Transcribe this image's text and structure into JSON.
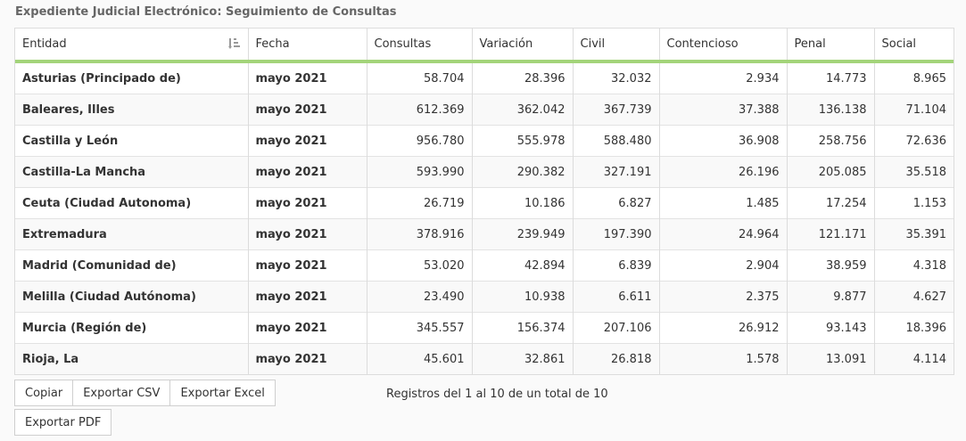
{
  "title": "Expediente Judicial Electrónico: Seguimiento de Consultas",
  "table": {
    "columns": [
      "Entidad",
      "Fecha",
      "Consultas",
      "Variación",
      "Civil",
      "Contencioso",
      "Penal",
      "Social"
    ],
    "rows": [
      [
        "Asturias (Principado de)",
        "mayo 2021",
        "58.704",
        "28.396",
        "32.032",
        "2.934",
        "14.773",
        "8.965"
      ],
      [
        "Baleares, Illes",
        "mayo 2021",
        "612.369",
        "362.042",
        "367.739",
        "37.388",
        "136.138",
        "71.104"
      ],
      [
        "Castilla y León",
        "mayo 2021",
        "956.780",
        "555.978",
        "588.480",
        "36.908",
        "258.756",
        "72.636"
      ],
      [
        "Castilla-La Mancha",
        "mayo 2021",
        "593.990",
        "290.382",
        "327.191",
        "26.196",
        "205.085",
        "35.518"
      ],
      [
        "Ceuta (Ciudad Autonoma)",
        "mayo 2021",
        "26.719",
        "10.186",
        "6.827",
        "1.485",
        "17.254",
        "1.153"
      ],
      [
        "Extremadura",
        "mayo 2021",
        "378.916",
        "239.949",
        "197.390",
        "24.964",
        "121.171",
        "35.391"
      ],
      [
        "Madrid (Comunidad de)",
        "mayo 2021",
        "53.020",
        "42.894",
        "6.839",
        "2.904",
        "38.959",
        "4.318"
      ],
      [
        "Melilla (Ciudad Autónoma)",
        "mayo 2021",
        "23.490",
        "10.938",
        "6.611",
        "2.375",
        "9.877",
        "4.627"
      ],
      [
        "Murcia (Región de)",
        "mayo 2021",
        "345.557",
        "156.374",
        "207.106",
        "26.912",
        "93.143",
        "18.396"
      ],
      [
        "Rioja, La",
        "mayo 2021",
        "45.601",
        "32.861",
        "26.818",
        "1.578",
        "13.091",
        "4.114"
      ]
    ]
  },
  "buttons": {
    "copy": "Copiar",
    "csv": "Exportar CSV",
    "excel": "Exportar Excel",
    "pdf": "Exportar PDF"
  },
  "info": "Registros del 1 al 10 de un total de 10",
  "icons": {
    "sort": "sort-ascending-icon"
  },
  "colors": {
    "header_underline": "#a3d47a"
  }
}
